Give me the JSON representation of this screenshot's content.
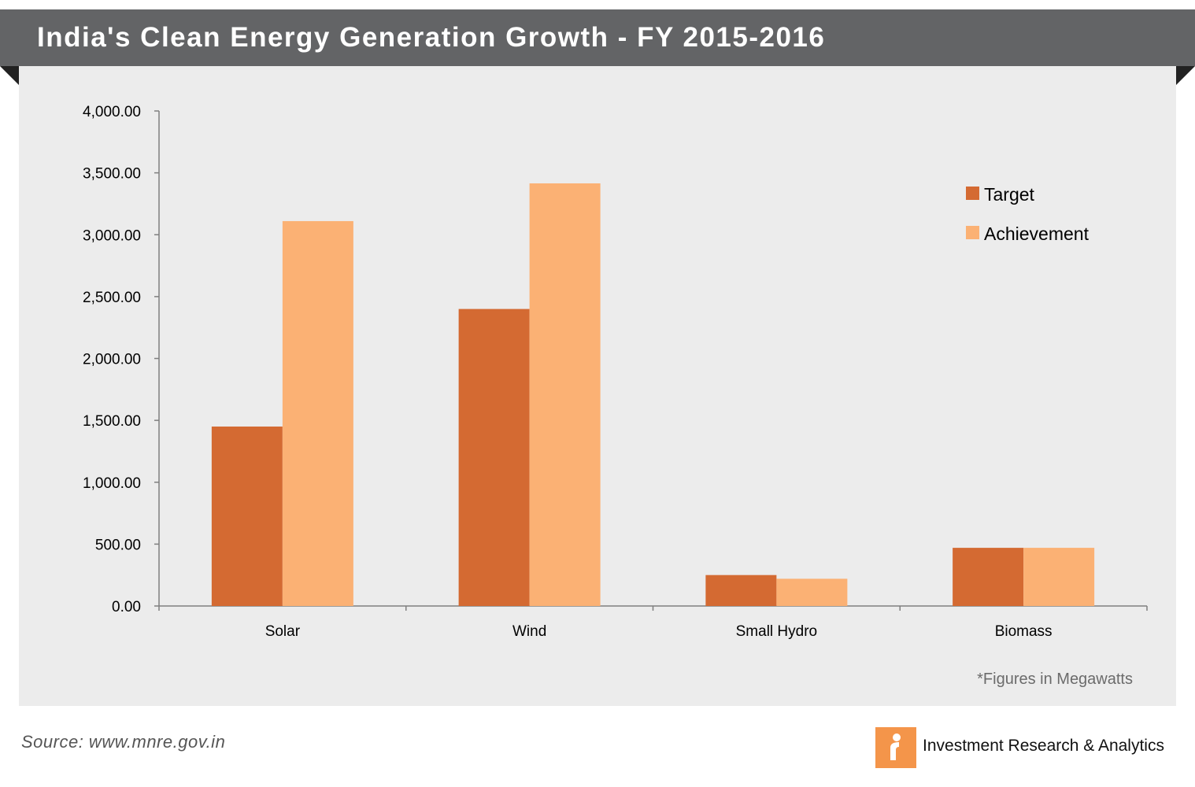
{
  "header": {
    "title": "India's Clean Energy Generation Growth - FY 2015-2016"
  },
  "chart_data": {
    "type": "bar",
    "title": "India's Clean Energy Generation Growth - FY 2015-2016",
    "categories": [
      "Solar",
      "Wind",
      "Small Hydro",
      "Biomass"
    ],
    "series": [
      {
        "name": "Target",
        "color": "#d46a32",
        "values": [
          1450,
          2400,
          250,
          470
        ]
      },
      {
        "name": "Achievement",
        "color": "#fbb174",
        "values": [
          3110,
          3415,
          220,
          470
        ]
      }
    ],
    "ylim": [
      0,
      4000
    ],
    "yticks": [
      0,
      500,
      1000,
      1500,
      2000,
      2500,
      3000,
      3500,
      4000
    ],
    "ytick_labels": [
      "0.00",
      "500.00",
      "1,000.00",
      "1,500.00",
      "2,000.00",
      "2,500.00",
      "3,000.00",
      "3,500.00",
      "4,000.00"
    ],
    "xlabel": "",
    "ylabel": "",
    "grid": false,
    "legend_position": "top-right",
    "note": "*Figures in Megawatts"
  },
  "footer": {
    "source": "Source: www.mnre.gov.in",
    "brand": "Investment  Research & Analytics",
    "logo_icon": "ira-logo-icon"
  }
}
